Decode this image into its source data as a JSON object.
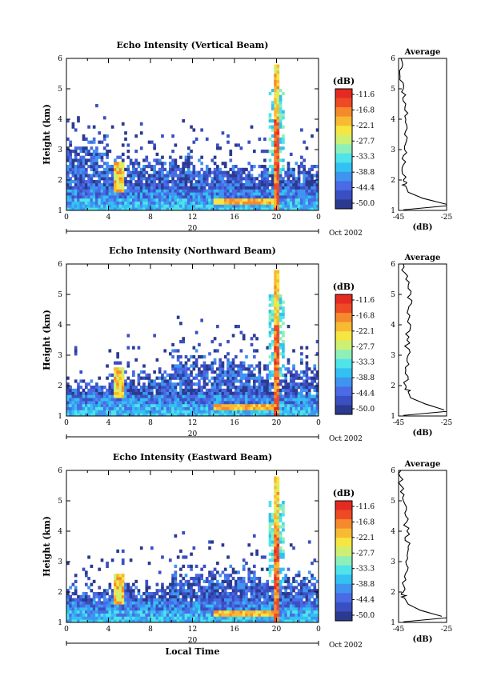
{
  "chart_data": [
    {
      "type": "heatmap",
      "title": "Echo Intensity (Vertical Beam)",
      "ylabel": "Height (km)",
      "xlim": [
        0,
        24
      ],
      "ylim": [
        1,
        6
      ],
      "x_ticks": [
        "0",
        "4",
        "8",
        "12",
        "16",
        "20",
        "0"
      ],
      "y_ticks": [
        "1",
        "2",
        "3",
        "4",
        "5",
        "6"
      ],
      "date_label": "20",
      "month_label": "Oct 2002",
      "colorbar": {
        "unit": "(dB)",
        "ticks": [
          "-11.6",
          "-16.8",
          "-22.1",
          "-27.7",
          "-33.3",
          "-38.8",
          "-44.4",
          "-50.0"
        ]
      },
      "profile": {
        "title": "Average",
        "xlabel": "(dB)",
        "x_ticks": [
          "-45",
          "-25"
        ],
        "y_ticks": [
          "1",
          "2",
          "3",
          "4",
          "5",
          "6"
        ],
        "heights": [
          1.2,
          1.4,
          1.6,
          1.8,
          2.0,
          2.5,
          3.0,
          3.5,
          4.0,
          4.5,
          5.0,
          5.5,
          6.0
        ],
        "values": [
          -25,
          -35,
          -41,
          -42,
          -43,
          -43,
          -42.5,
          -42.5,
          -42,
          -42,
          -43,
          -44.5,
          -44
        ]
      }
    },
    {
      "type": "heatmap",
      "title": "Echo Intensity (Northward Beam)",
      "ylabel": "Height (km)",
      "xlim": [
        0,
        24
      ],
      "ylim": [
        1,
        6
      ],
      "x_ticks": [
        "0",
        "4",
        "8",
        "12",
        "16",
        "20",
        "0"
      ],
      "y_ticks": [
        "1",
        "2",
        "3",
        "4",
        "5",
        "6"
      ],
      "date_label": "20",
      "month_label": "Oct 2002",
      "colorbar": {
        "unit": "(dB)",
        "ticks": [
          "-11.6",
          "-16.8",
          "-22.1",
          "-27.7",
          "-33.3",
          "-38.8",
          "-44.4",
          "-50.0"
        ]
      },
      "profile": {
        "title": "Average",
        "xlabel": "(dB)",
        "x_ticks": [
          "-45",
          "-25"
        ],
        "y_ticks": [
          "1",
          "2",
          "3",
          "4",
          "5",
          "6"
        ],
        "heights": [
          1.2,
          1.4,
          1.6,
          1.8,
          2.0,
          2.5,
          3.0,
          3.5,
          4.0,
          4.5,
          5.0,
          5.5,
          6.0
        ],
        "values": [
          -26,
          -34,
          -40,
          -41,
          -42,
          -42,
          -41,
          -41.5,
          -40,
          -41,
          -40,
          -42,
          -43
        ]
      }
    },
    {
      "type": "heatmap",
      "title": "Echo Intensity (Eastward Beam)",
      "ylabel": "Height (km)",
      "xlabel": "Local Time",
      "xlim": [
        0,
        24
      ],
      "ylim": [
        1,
        6
      ],
      "x_ticks": [
        "0",
        "4",
        "8",
        "12",
        "16",
        "20",
        "0"
      ],
      "y_ticks": [
        "1",
        "2",
        "3",
        "4",
        "5",
        "6"
      ],
      "date_label": "20",
      "month_label": "Oct 2002",
      "colorbar": {
        "unit": "(dB)",
        "ticks": [
          "-11.6",
          "-16.8",
          "-22.1",
          "-27.7",
          "-33.3",
          "-38.8",
          "-44.4",
          "-50.0"
        ]
      },
      "profile": {
        "title": "Average",
        "xlabel": "(dB)",
        "x_ticks": [
          "-45",
          "-25"
        ],
        "y_ticks": [
          "1",
          "2",
          "3",
          "4",
          "5",
          "6"
        ],
        "heights": [
          1.2,
          1.4,
          1.6,
          1.8,
          2.0,
          2.5,
          3.0,
          3.5,
          4.0,
          4.5,
          5.0,
          5.5,
          6.0
        ],
        "values": [
          -27,
          -36,
          -41,
          -42.5,
          -43,
          -42.5,
          -42,
          -41,
          -41.5,
          -42,
          -43,
          -44,
          -44
        ]
      }
    }
  ],
  "colors": {
    "scale": [
      "#2b3a8f",
      "#3a4fc2",
      "#4a6ae6",
      "#3f94f0",
      "#33c1f2",
      "#4fe3ea",
      "#8ef0b8",
      "#cdf074",
      "#f5e642",
      "#f8b933",
      "#f58a2c",
      "#ee4a26",
      "#e52a22"
    ]
  }
}
